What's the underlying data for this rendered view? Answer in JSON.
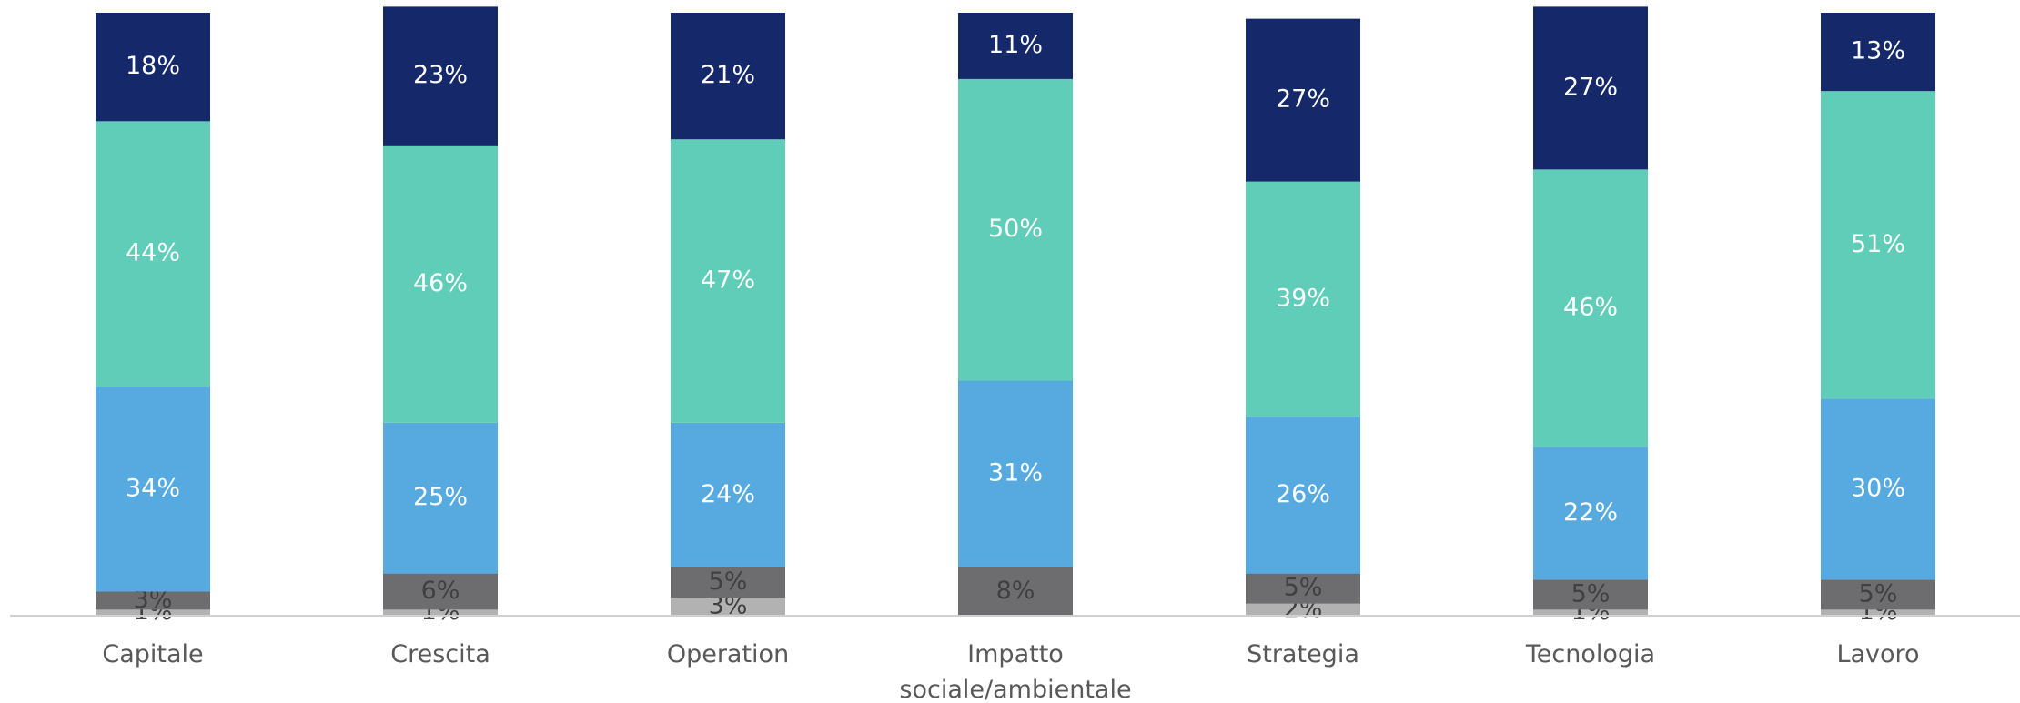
{
  "chart_data": {
    "type": "stacked_bar",
    "categories": [
      "Capitale",
      "Crescita",
      "Operation",
      "Impatto sociale/ambientale",
      "Strategia",
      "Tecnologia",
      "Lavoro"
    ],
    "series": [
      {
        "color": "#b2b2b2",
        "label_color": "#404040",
        "values": [
          1,
          1,
          3,
          null,
          2,
          1,
          1
        ],
        "value_labels": [
          "1%",
          "1%",
          "3%",
          null,
          "2%",
          "1%",
          "1%"
        ]
      },
      {
        "color": "#6d6d6f",
        "label_color": "#404040",
        "values": [
          3,
          6,
          5,
          8,
          5,
          5,
          5
        ],
        "value_labels": [
          "3%",
          "6%",
          "5%",
          "8%",
          "5%",
          "5%",
          "5%"
        ]
      },
      {
        "color": "#56aae0",
        "label_color": "#ffffff",
        "values": [
          34,
          25,
          24,
          31,
          26,
          22,
          30
        ],
        "value_labels": [
          "34%",
          "25%",
          "24%",
          "31%",
          "26%",
          "22%",
          "30%"
        ]
      },
      {
        "color": "#60cdb9",
        "label_color": "#ffffff",
        "values": [
          44,
          46,
          47,
          50,
          39,
          46,
          51
        ],
        "value_labels": [
          "44%",
          "46%",
          "47%",
          "50%",
          "39%",
          "46%",
          "51%"
        ]
      },
      {
        "color": "#14286a",
        "label_color": "#ffffff",
        "values": [
          18,
          23,
          21,
          11,
          27,
          27,
          13
        ],
        "value_labels": [
          "18%",
          "23%",
          "21%",
          "11%",
          "27%",
          "27%",
          "13%"
        ]
      }
    ],
    "ylim": [
      0,
      100
    ]
  }
}
